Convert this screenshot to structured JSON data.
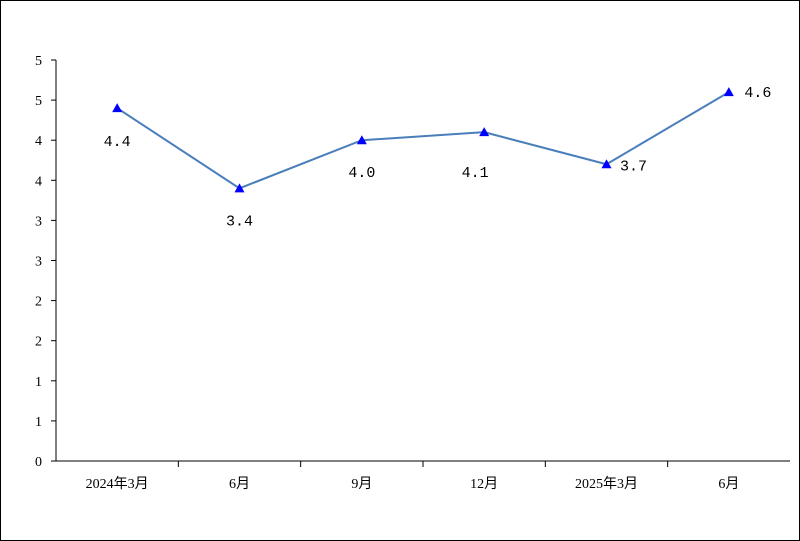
{
  "chart_data": {
    "type": "line",
    "categories": [
      "2024年3月",
      "6月",
      "9月",
      "12月",
      "2025年3月",
      "6月"
    ],
    "series": [
      {
        "values": [
          4.4,
          3.4,
          4.0,
          4.1,
          3.7,
          4.6
        ],
        "color": "#4a7ebb",
        "marker": "triangle",
        "marker_color": "#0000ff"
      }
    ],
    "data_labels": [
      "4.4",
      "3.4",
      "4.0",
      "4.1",
      "3.7",
      "4.6"
    ],
    "y_tick_labels": [
      "0",
      "1",
      "1",
      "2",
      "2",
      "3",
      "3",
      "4",
      "4",
      "5",
      "5"
    ],
    "ylim": [
      0,
      5
    ],
    "title": "",
    "xlabel": "",
    "ylabel": "",
    "grid": false,
    "legend": "none"
  }
}
